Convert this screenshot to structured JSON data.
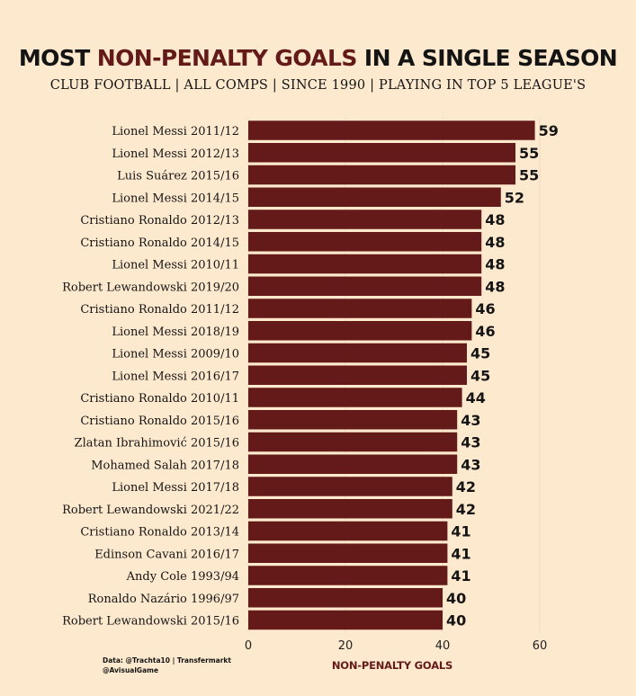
{
  "header": {
    "title_pre": "MOST ",
    "title_accent": "NON-PENALTY GOALS",
    "title_post": " IN A SINGLE SEASON",
    "subtitle": "CLUB FOOTBALL  |  ALL COMPS  |  SINCE 1990  |  PLAYING IN TOP 5 LEAGUE'S"
  },
  "footer": {
    "source_line1": "Data: @Trachta10  |  Transfermarkt",
    "source_line2": "@AvisualGame"
  },
  "colors": {
    "background": "#fde9ce",
    "bar": "#651a1a",
    "accent": "#651a1a",
    "text": "#141414"
  },
  "chart_data": {
    "type": "bar",
    "orientation": "horizontal",
    "title": "MOST NON-PENALTY GOALS IN A SINGLE SEASON",
    "subtitle": "CLUB FOOTBALL  |  ALL COMPS  |  SINCE 1990  |  PLAYING IN TOP 5 LEAGUE'S",
    "xlabel": "NON-PENALTY GOALS",
    "ylabel": "",
    "xlim": [
      0,
      60
    ],
    "xticks": [
      0,
      20,
      40,
      60
    ],
    "grid": "vertical",
    "legend": "none",
    "categories": [
      "Lionel Messi 2011/12",
      "Lionel Messi 2012/13",
      "Luis Suárez 2015/16",
      "Lionel Messi 2014/15",
      "Cristiano Ronaldo 2012/13",
      "Cristiano Ronaldo 2014/15",
      "Lionel Messi 2010/11",
      "Robert Lewandowski 2019/20",
      "Cristiano Ronaldo 2011/12",
      "Lionel Messi 2018/19",
      "Lionel Messi 2009/10",
      "Lionel Messi 2016/17",
      "Cristiano Ronaldo 2010/11",
      "Cristiano Ronaldo 2015/16",
      "Zlatan Ibrahimović 2015/16",
      "Mohamed Salah 2017/18",
      "Lionel Messi 2017/18",
      "Robert Lewandowski 2021/22",
      "Cristiano Ronaldo 2013/14",
      "Edinson Cavani 2016/17",
      "Andy Cole 1993/94",
      "Ronaldo Nazário 1996/97",
      "Robert Lewandowski 2015/16"
    ],
    "values": [
      59,
      55,
      55,
      52,
      48,
      48,
      48,
      48,
      46,
      46,
      45,
      45,
      44,
      43,
      43,
      43,
      42,
      42,
      41,
      41,
      41,
      40,
      40
    ]
  }
}
